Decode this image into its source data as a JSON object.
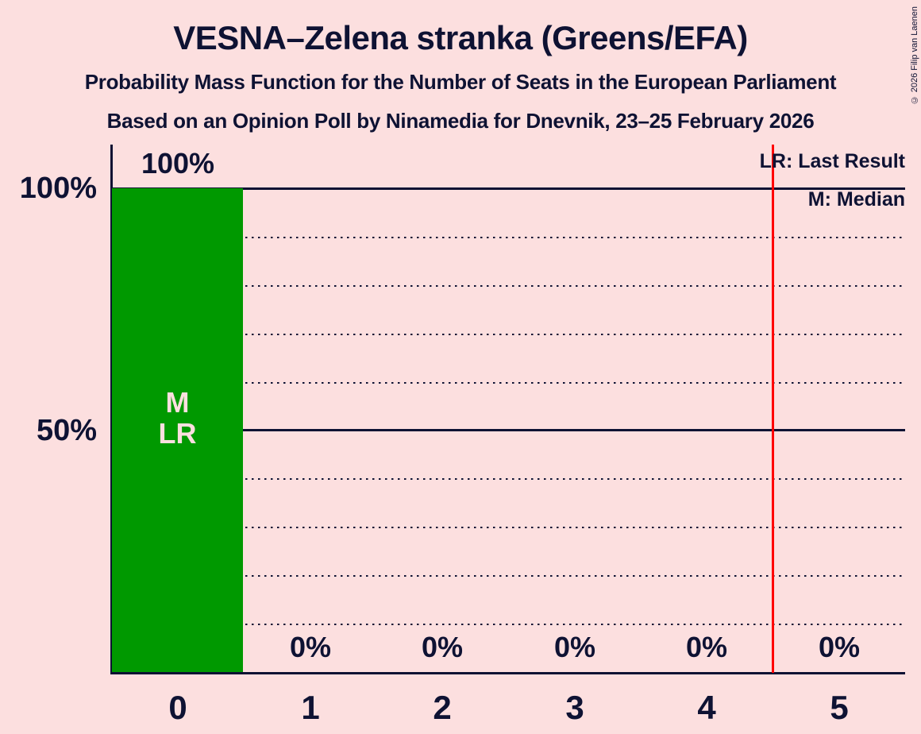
{
  "page": {
    "background_color": "#fcdfdf",
    "text_color": "#0e1233",
    "copyright": "© 2026 Filip van Laenen"
  },
  "header": {
    "title": "VESNA–Zelena stranka (Greens/EFA)",
    "subtitle_line1": "Probability Mass Function for the Number of Seats in the European Parliament",
    "subtitle_line2": "Based on an Opinion Poll by Ninamedia for Dnevnik, 23–25 February 2026"
  },
  "legend": {
    "last_result": "LR: Last Result",
    "median": "M: Median"
  },
  "y_axis": {
    "tick_labels": [
      "100%",
      "50%"
    ]
  },
  "chart_data": {
    "type": "bar",
    "title": "VESNA–Zelena stranka (Greens/EFA)",
    "categories": [
      "0",
      "1",
      "2",
      "3",
      "4",
      "5"
    ],
    "values": [
      100,
      0,
      0,
      0,
      0,
      0
    ],
    "bar_labels": [
      "100%",
      "0%",
      "0%",
      "0%",
      "0%",
      "0%"
    ],
    "xlabel": "",
    "ylabel": "",
    "ylim": [
      0,
      100
    ],
    "ytick_interval_pct": 10,
    "labeled_yticks": [
      100,
      50
    ],
    "grid": "horizontal dotted every 10%, solid at 50% and 100%",
    "bar_color": "#009900",
    "bar_inner_labels": [
      "M",
      "LR"
    ],
    "median_category": "0",
    "last_result_category": "0",
    "last_result_line_x": 4.5,
    "last_result_line_color": "#ff0000",
    "legend_position": "top-right"
  }
}
